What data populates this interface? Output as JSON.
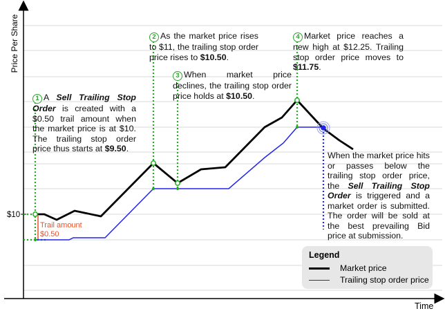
{
  "axes": {
    "y_label": "Price Per Share",
    "x_label": "Time",
    "price_tick": "$10"
  },
  "trail_amount": {
    "line1": "Trail amount",
    "line2": "$0.50"
  },
  "annotations": {
    "n1": {
      "badge": "1",
      "pre": "A ",
      "em": "Sell Trailing Stop Order",
      "mid": " is created with a $0.50 trail amount when the market price is at $10. The trailing stop order price thus starts at ",
      "bold": "$9.50",
      "post": "."
    },
    "n2": {
      "badge": "2",
      "pre": "As the market price rises to $11, the trailing stop order price rises to ",
      "bold": "$10.50",
      "post": "."
    },
    "n3": {
      "badge": "3",
      "pre": "When market price declines, the trailing stop order price holds at ",
      "bold": "$10.50",
      "post": "."
    },
    "n4": {
      "badge": "4",
      "pre": "Market price reaches a new high at $12.25. Trailing stop order price moves to ",
      "bold": "$11.75",
      "post": "."
    },
    "n5": {
      "pre": "When the market price hits or passes below the trailing stop order price, the ",
      "em": "Sell Trailing Stop Order",
      "post": " is triggered and a market order is submitted. The order will be sold at the best prevailing Bid price at submission."
    }
  },
  "legend": {
    "title": "Legend",
    "items": [
      {
        "label": "Market price",
        "color": "#000000"
      },
      {
        "label": "Trailing stop order price",
        "color": "#2222ee"
      }
    ]
  },
  "colors": {
    "market": "#000000",
    "trailing": "#2222ee",
    "guide": "#22aa22",
    "trail_bracket": "#e8522a",
    "trigger_guide": "#2222ee",
    "grid": "#d8d8d8"
  }
}
